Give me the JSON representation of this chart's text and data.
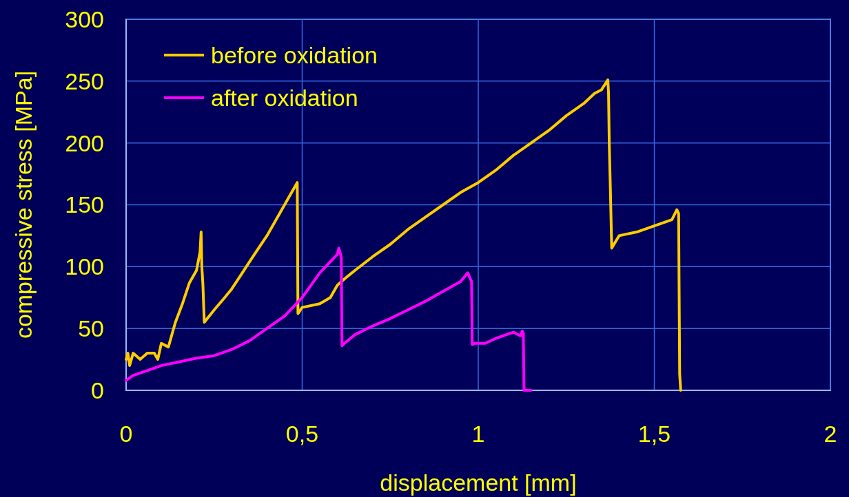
{
  "chart_data": {
    "type": "line",
    "xlabel": "displacement [mm]",
    "ylabel": "compressive stress [MPa]",
    "xlim": [
      0,
      2
    ],
    "xticks": [
      {
        "value": 0,
        "label": "0"
      },
      {
        "value": 0.5,
        "label": "0,5"
      },
      {
        "value": 1,
        "label": "1"
      },
      {
        "value": 1.5,
        "label": "1,5"
      },
      {
        "value": 2,
        "label": "2"
      }
    ],
    "ylim": [
      0,
      300
    ],
    "yticks": [
      0,
      50,
      100,
      150,
      200,
      250,
      300
    ],
    "grid": true,
    "legend": "top left",
    "marker": "none",
    "line_style": "solid",
    "series": [
      {
        "name": "before oxidation",
        "color": "#ffcc00",
        "x": [
          0,
          0.005,
          0.01,
          0.02,
          0.04,
          0.06,
          0.08,
          0.09,
          0.1,
          0.12,
          0.14,
          0.16,
          0.18,
          0.2,
          0.21,
          0.213,
          0.215,
          0.218,
          0.222,
          0.25,
          0.28,
          0.3,
          0.33,
          0.36,
          0.4,
          0.43,
          0.46,
          0.486,
          0.488,
          0.5,
          0.55,
          0.58,
          0.6,
          0.62,
          0.65,
          0.7,
          0.75,
          0.8,
          0.85,
          0.9,
          0.95,
          1.0,
          1.05,
          1.1,
          1.15,
          1.2,
          1.25,
          1.3,
          1.33,
          1.35,
          1.368,
          1.37,
          1.372,
          1.375,
          1.379,
          1.4,
          1.45,
          1.5,
          1.55,
          1.564,
          1.569,
          1.572,
          1.575
        ],
        "values": [
          25,
          30,
          20,
          30,
          25,
          30,
          30,
          25,
          38,
          35,
          55,
          70,
          87,
          97,
          112,
          128,
          100,
          86,
          55,
          65,
          75,
          82,
          95,
          108,
          125,
          140,
          155,
          168,
          62,
          67,
          70,
          75,
          85,
          90,
          97,
          108,
          118,
          130,
          140,
          150,
          160,
          168,
          178,
          190,
          200,
          210,
          222,
          232,
          240,
          243,
          251,
          240,
          200,
          165,
          115,
          125,
          128,
          133,
          138,
          146,
          143,
          13,
          0
        ]
      },
      {
        "name": "after oxidation",
        "color": "#ff00ff",
        "x": [
          0,
          0.02,
          0.05,
          0.1,
          0.15,
          0.2,
          0.25,
          0.3,
          0.35,
          0.4,
          0.45,
          0.5,
          0.55,
          0.6,
          0.604,
          0.611,
          0.613,
          0.62,
          0.65,
          0.7,
          0.75,
          0.8,
          0.85,
          0.9,
          0.95,
          0.97,
          0.981,
          0.983,
          0.99,
          1.02,
          1.05,
          1.08,
          1.1,
          1.12,
          1.125,
          1.128,
          1.13,
          1.15
        ],
        "values": [
          8,
          12,
          15,
          20,
          23,
          26,
          28,
          33,
          40,
          50,
          60,
          75,
          95,
          110,
          115,
          108,
          36,
          38,
          45,
          52,
          58,
          65,
          72,
          80,
          88,
          95,
          88,
          37,
          38,
          38,
          42,
          45,
          47,
          44,
          48,
          46,
          0,
          0
        ]
      }
    ]
  }
}
